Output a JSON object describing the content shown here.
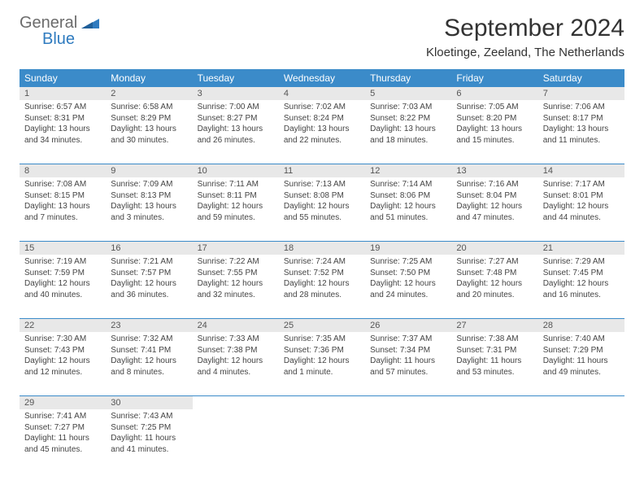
{
  "logo": {
    "text1": "General",
    "text2": "Blue"
  },
  "title": "September 2024",
  "location": "Kloetinge, Zeeland, The Netherlands",
  "colors": {
    "header_bg": "#3b8bc9",
    "header_text": "#ffffff",
    "daynum_bg": "#e8e8e8",
    "border": "#3b8bc9",
    "body_text": "#444444",
    "logo_gray": "#6b6b6b",
    "logo_blue": "#2f7bbf"
  },
  "day_names": [
    "Sunday",
    "Monday",
    "Tuesday",
    "Wednesday",
    "Thursday",
    "Friday",
    "Saturday"
  ],
  "weeks": [
    [
      {
        "n": "1",
        "sunrise": "Sunrise: 6:57 AM",
        "sunset": "Sunset: 8:31 PM",
        "daylight": "Daylight: 13 hours and 34 minutes."
      },
      {
        "n": "2",
        "sunrise": "Sunrise: 6:58 AM",
        "sunset": "Sunset: 8:29 PM",
        "daylight": "Daylight: 13 hours and 30 minutes."
      },
      {
        "n": "3",
        "sunrise": "Sunrise: 7:00 AM",
        "sunset": "Sunset: 8:27 PM",
        "daylight": "Daylight: 13 hours and 26 minutes."
      },
      {
        "n": "4",
        "sunrise": "Sunrise: 7:02 AM",
        "sunset": "Sunset: 8:24 PM",
        "daylight": "Daylight: 13 hours and 22 minutes."
      },
      {
        "n": "5",
        "sunrise": "Sunrise: 7:03 AM",
        "sunset": "Sunset: 8:22 PM",
        "daylight": "Daylight: 13 hours and 18 minutes."
      },
      {
        "n": "6",
        "sunrise": "Sunrise: 7:05 AM",
        "sunset": "Sunset: 8:20 PM",
        "daylight": "Daylight: 13 hours and 15 minutes."
      },
      {
        "n": "7",
        "sunrise": "Sunrise: 7:06 AM",
        "sunset": "Sunset: 8:17 PM",
        "daylight": "Daylight: 13 hours and 11 minutes."
      }
    ],
    [
      {
        "n": "8",
        "sunrise": "Sunrise: 7:08 AM",
        "sunset": "Sunset: 8:15 PM",
        "daylight": "Daylight: 13 hours and 7 minutes."
      },
      {
        "n": "9",
        "sunrise": "Sunrise: 7:09 AM",
        "sunset": "Sunset: 8:13 PM",
        "daylight": "Daylight: 13 hours and 3 minutes."
      },
      {
        "n": "10",
        "sunrise": "Sunrise: 7:11 AM",
        "sunset": "Sunset: 8:11 PM",
        "daylight": "Daylight: 12 hours and 59 minutes."
      },
      {
        "n": "11",
        "sunrise": "Sunrise: 7:13 AM",
        "sunset": "Sunset: 8:08 PM",
        "daylight": "Daylight: 12 hours and 55 minutes."
      },
      {
        "n": "12",
        "sunrise": "Sunrise: 7:14 AM",
        "sunset": "Sunset: 8:06 PM",
        "daylight": "Daylight: 12 hours and 51 minutes."
      },
      {
        "n": "13",
        "sunrise": "Sunrise: 7:16 AM",
        "sunset": "Sunset: 8:04 PM",
        "daylight": "Daylight: 12 hours and 47 minutes."
      },
      {
        "n": "14",
        "sunrise": "Sunrise: 7:17 AM",
        "sunset": "Sunset: 8:01 PM",
        "daylight": "Daylight: 12 hours and 44 minutes."
      }
    ],
    [
      {
        "n": "15",
        "sunrise": "Sunrise: 7:19 AM",
        "sunset": "Sunset: 7:59 PM",
        "daylight": "Daylight: 12 hours and 40 minutes."
      },
      {
        "n": "16",
        "sunrise": "Sunrise: 7:21 AM",
        "sunset": "Sunset: 7:57 PM",
        "daylight": "Daylight: 12 hours and 36 minutes."
      },
      {
        "n": "17",
        "sunrise": "Sunrise: 7:22 AM",
        "sunset": "Sunset: 7:55 PM",
        "daylight": "Daylight: 12 hours and 32 minutes."
      },
      {
        "n": "18",
        "sunrise": "Sunrise: 7:24 AM",
        "sunset": "Sunset: 7:52 PM",
        "daylight": "Daylight: 12 hours and 28 minutes."
      },
      {
        "n": "19",
        "sunrise": "Sunrise: 7:25 AM",
        "sunset": "Sunset: 7:50 PM",
        "daylight": "Daylight: 12 hours and 24 minutes."
      },
      {
        "n": "20",
        "sunrise": "Sunrise: 7:27 AM",
        "sunset": "Sunset: 7:48 PM",
        "daylight": "Daylight: 12 hours and 20 minutes."
      },
      {
        "n": "21",
        "sunrise": "Sunrise: 7:29 AM",
        "sunset": "Sunset: 7:45 PM",
        "daylight": "Daylight: 12 hours and 16 minutes."
      }
    ],
    [
      {
        "n": "22",
        "sunrise": "Sunrise: 7:30 AM",
        "sunset": "Sunset: 7:43 PM",
        "daylight": "Daylight: 12 hours and 12 minutes."
      },
      {
        "n": "23",
        "sunrise": "Sunrise: 7:32 AM",
        "sunset": "Sunset: 7:41 PM",
        "daylight": "Daylight: 12 hours and 8 minutes."
      },
      {
        "n": "24",
        "sunrise": "Sunrise: 7:33 AM",
        "sunset": "Sunset: 7:38 PM",
        "daylight": "Daylight: 12 hours and 4 minutes."
      },
      {
        "n": "25",
        "sunrise": "Sunrise: 7:35 AM",
        "sunset": "Sunset: 7:36 PM",
        "daylight": "Daylight: 12 hours and 1 minute."
      },
      {
        "n": "26",
        "sunrise": "Sunrise: 7:37 AM",
        "sunset": "Sunset: 7:34 PM",
        "daylight": "Daylight: 11 hours and 57 minutes."
      },
      {
        "n": "27",
        "sunrise": "Sunrise: 7:38 AM",
        "sunset": "Sunset: 7:31 PM",
        "daylight": "Daylight: 11 hours and 53 minutes."
      },
      {
        "n": "28",
        "sunrise": "Sunrise: 7:40 AM",
        "sunset": "Sunset: 7:29 PM",
        "daylight": "Daylight: 11 hours and 49 minutes."
      }
    ],
    [
      {
        "n": "29",
        "sunrise": "Sunrise: 7:41 AM",
        "sunset": "Sunset: 7:27 PM",
        "daylight": "Daylight: 11 hours and 45 minutes."
      },
      {
        "n": "30",
        "sunrise": "Sunrise: 7:43 AM",
        "sunset": "Sunset: 7:25 PM",
        "daylight": "Daylight: 11 hours and 41 minutes."
      },
      null,
      null,
      null,
      null,
      null
    ]
  ]
}
